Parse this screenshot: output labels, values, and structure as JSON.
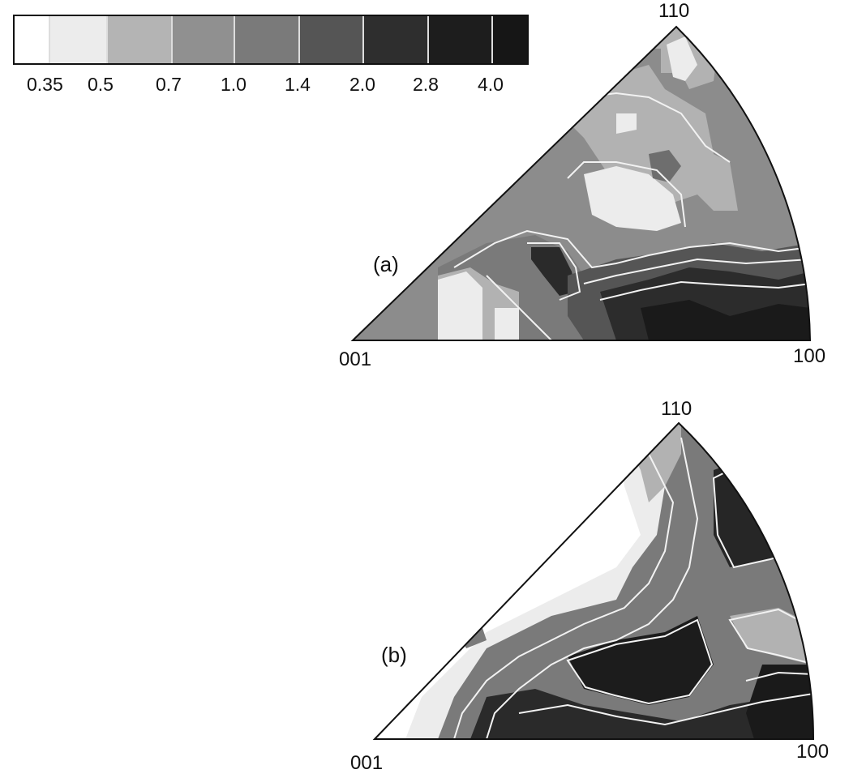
{
  "legend": {
    "colors": [
      "#ffffff",
      "#ececec",
      "#b4b4b4",
      "#909090",
      "#7a7a7a",
      "#555555",
      "#2e2e2e",
      "#1d1d1d",
      "#161616"
    ],
    "ticks": [
      "0.35",
      "0.5",
      "0.7",
      "1.0",
      "1.4",
      "2.0",
      "2.8",
      "4.0"
    ]
  },
  "panel_a": {
    "label": "(a)",
    "corner_top": "110",
    "corner_left": "001",
    "corner_right": "100"
  },
  "panel_b": {
    "label": "(b)",
    "corner_top": "110",
    "corner_left": "001",
    "corner_right": "100"
  }
}
